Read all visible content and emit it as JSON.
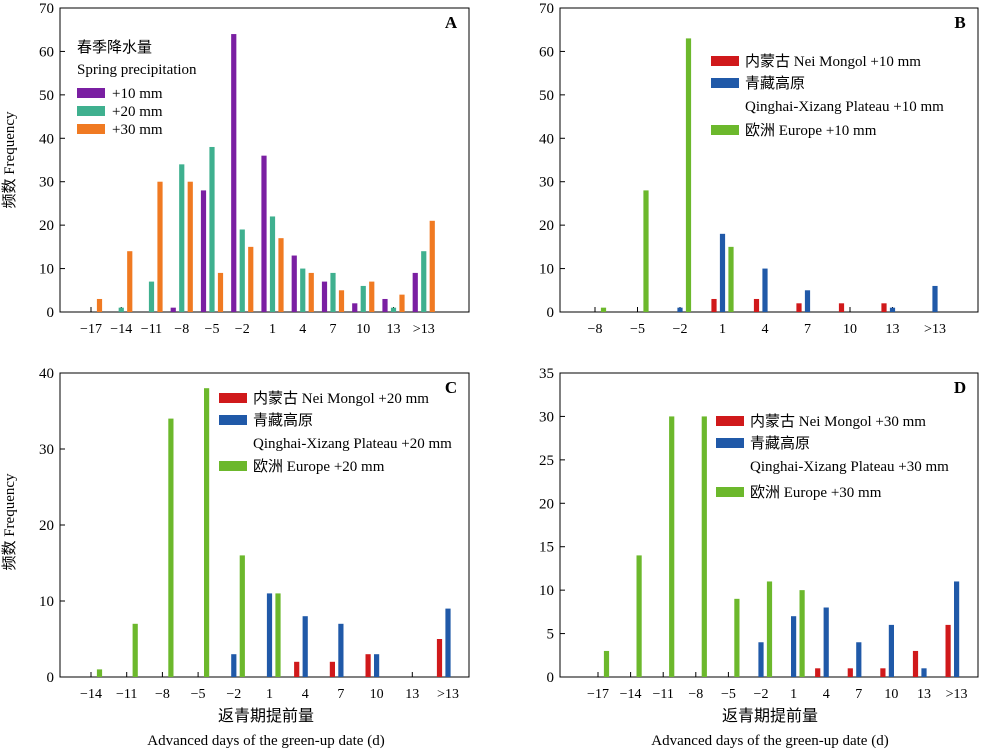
{
  "shared": {
    "ylabel": "频数 Frequency",
    "xlabel_cn": "返青期提前量",
    "xlabel_en": "Advanced days of the green-up date (d)"
  },
  "chart_data": [
    {
      "type": "bar",
      "panel_letter": "A",
      "categories": [
        "−17",
        "−14",
        "−11",
        "−8",
        "−5",
        "−2",
        "1",
        "4",
        "7",
        "10",
        "13",
        ">13"
      ],
      "ylim": [
        0,
        70
      ],
      "yticks": [
        0,
        10,
        20,
        30,
        40,
        50,
        60,
        70
      ],
      "ylabel": "频数 Frequency",
      "xlabel": "",
      "legend_title_cn": "春季降水量",
      "legend_title_en": "Spring precipitation",
      "legend_position": "top-left",
      "series": [
        {
          "name": "+10 mm",
          "color": "#7a1fa2",
          "values": [
            0,
            0,
            0,
            1,
            28,
            64,
            36,
            13,
            7,
            2,
            3,
            9
          ]
        },
        {
          "name": "+20 mm",
          "color": "#3fb08f",
          "values": [
            0,
            1,
            7,
            34,
            38,
            19,
            22,
            10,
            9,
            6,
            1,
            14
          ]
        },
        {
          "name": "+30 mm",
          "color": "#f07a22",
          "values": [
            3,
            14,
            30,
            30,
            9,
            15,
            17,
            9,
            5,
            7,
            4,
            21
          ]
        }
      ]
    },
    {
      "type": "bar",
      "panel_letter": "B",
      "categories": [
        "−8",
        "−5",
        "−2",
        "1",
        "4",
        "7",
        "10",
        "13",
        ">13"
      ],
      "ylim": [
        0,
        70
      ],
      "yticks": [
        0,
        10,
        20,
        30,
        40,
        50,
        60,
        70
      ],
      "ylabel": "",
      "xlabel": "",
      "legend_position": "top-right",
      "series": [
        {
          "name": "内蒙古 Nei Mongol +10 mm",
          "color": "#d0191b",
          "values": [
            0,
            0,
            0,
            3,
            3,
            2,
            2,
            2,
            0
          ]
        },
        {
          "name": "青藏高原 Qinghai-Xizang Plateau +10 mm",
          "color": "#2059a8",
          "values": [
            0,
            0,
            1,
            18,
            10,
            5,
            0,
            1,
            6
          ]
        },
        {
          "name": "欧洲 Europe +10 mm",
          "color": "#6cb82c",
          "values": [
            1,
            28,
            63,
            15,
            0,
            0,
            0,
            0,
            0
          ]
        }
      ]
    },
    {
      "type": "bar",
      "panel_letter": "C",
      "categories": [
        "−14",
        "−11",
        "−8",
        "−5",
        "−2",
        "1",
        "4",
        "7",
        "10",
        "13",
        ">13"
      ],
      "ylim": [
        0,
        40
      ],
      "yticks": [
        0,
        10,
        20,
        30,
        40
      ],
      "ylabel": "频数 Frequency",
      "xlabel": "返青期提前量 Advanced days of the green-up date (d)",
      "legend_position": "top-right",
      "series": [
        {
          "name": "内蒙古 Nei Mongol +20 mm",
          "color": "#d0191b",
          "values": [
            0,
            0,
            0,
            0,
            0,
            0,
            2,
            2,
            3,
            0,
            5
          ]
        },
        {
          "name": "青藏高原 Qinghai-Xizang Plateau +20 mm",
          "color": "#2059a8",
          "values": [
            0,
            0,
            0,
            0,
            3,
            11,
            8,
            7,
            3,
            0,
            9
          ]
        },
        {
          "name": "欧洲 Europe +20 mm",
          "color": "#6cb82c",
          "values": [
            1,
            7,
            34,
            38,
            16,
            11,
            0,
            0,
            0,
            0,
            0
          ]
        }
      ]
    },
    {
      "type": "bar",
      "panel_letter": "D",
      "categories": [
        "−17",
        "−14",
        "−11",
        "−8",
        "−5",
        "−2",
        "1",
        "4",
        "7",
        "10",
        "13",
        ">13"
      ],
      "ylim": [
        0,
        35
      ],
      "yticks": [
        0,
        5,
        10,
        15,
        20,
        25,
        30,
        35
      ],
      "ylabel": "",
      "xlabel": "返青期提前量 Advanced days of the green-up date (d)",
      "legend_position": "top-right",
      "series": [
        {
          "name": "内蒙古 Nei Mongol +30 mm",
          "color": "#d0191b",
          "values": [
            0,
            0,
            0,
            0,
            0,
            0,
            0,
            1,
            1,
            1,
            3,
            6
          ]
        },
        {
          "name": "青藏高原 Qinghai-Xizang Plateau +30 mm",
          "color": "#2059a8",
          "values": [
            0,
            0,
            0,
            0,
            0,
            4,
            7,
            8,
            4,
            6,
            1,
            11
          ]
        },
        {
          "name": "欧洲 Europe +30 mm",
          "color": "#6cb82c",
          "values": [
            3,
            14,
            30,
            30,
            9,
            11,
            10,
            0,
            0,
            0,
            0,
            0
          ]
        }
      ]
    }
  ]
}
